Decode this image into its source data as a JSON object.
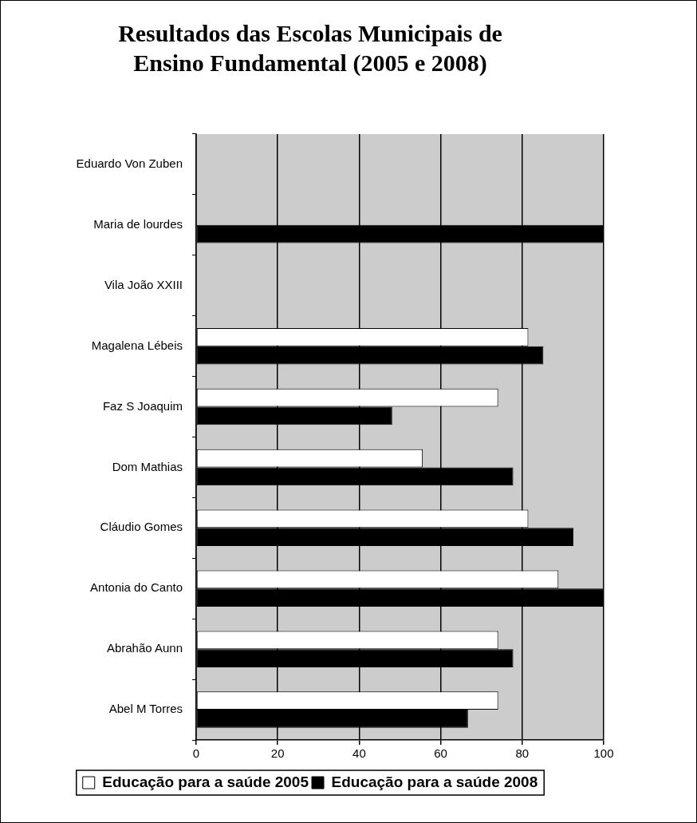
{
  "chart_data": {
    "type": "bar",
    "orientation": "horizontal",
    "title": "Resultados das Escolas Municipais de Ensino Fundamental (2005 e 2008)",
    "categories": [
      "Eduardo Von Zuben",
      "Maria de lourdes",
      "Vila João XXIII",
      "Magalena Lébeis",
      "Faz S Joaquim",
      "Dom Mathias",
      "Cláudio Gomes",
      "Antonia do Canto",
      "Abrahão Aunn",
      "Abel M Torres"
    ],
    "series": [
      {
        "name": "Educação para a saúde 2005",
        "color": "#ffffff",
        "values": [
          null,
          null,
          null,
          81.5,
          74.1,
          55.6,
          81.5,
          88.9,
          74.1,
          74.1
        ]
      },
      {
        "name": "Educação para a saúde 2008",
        "color": "#000000",
        "values": [
          null,
          100,
          null,
          85.2,
          48.1,
          77.8,
          92.6,
          100,
          77.8,
          66.7
        ]
      }
    ],
    "xlim": [
      0,
      100
    ],
    "xticks": [
      0,
      20,
      40,
      60,
      80,
      100
    ],
    "grid": "x",
    "legend": "bottom"
  }
}
